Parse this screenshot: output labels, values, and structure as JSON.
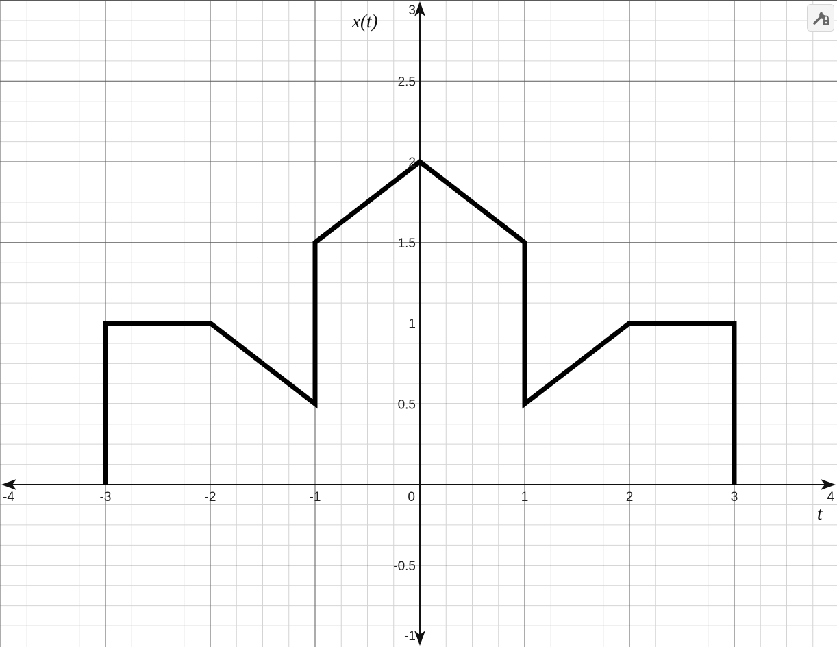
{
  "chart_data": {
    "type": "line",
    "title": "",
    "xlabel": "t",
    "ylabel": "x(t)",
    "xlim": [
      -4,
      4
    ],
    "ylim": [
      -1,
      3
    ],
    "x_major_step": 1,
    "y_major_step": 0.5,
    "x_minor_step": 0.25,
    "y_minor_step": 0.125,
    "grid": true,
    "x_ticks": [
      "-4",
      "-3",
      "-2",
      "-1",
      "0",
      "1",
      "2",
      "3",
      "4"
    ],
    "y_ticks": [
      "-1",
      "-0.5",
      "0.5",
      "1",
      "1.5",
      "2",
      "2.5",
      "3"
    ],
    "series": [
      {
        "color": "#000000",
        "points": [
          [
            -3,
            0
          ],
          [
            -3,
            1
          ],
          [
            -2,
            1
          ],
          [
            -1,
            0.5
          ],
          [
            -1,
            1.5
          ],
          [
            0,
            2
          ],
          [
            1,
            1.5
          ],
          [
            1,
            0.5
          ],
          [
            2,
            1
          ],
          [
            3,
            1
          ],
          [
            3,
            0
          ]
        ]
      }
    ]
  },
  "toolbar": {
    "settings_icon": "wrench-lock-icon"
  }
}
